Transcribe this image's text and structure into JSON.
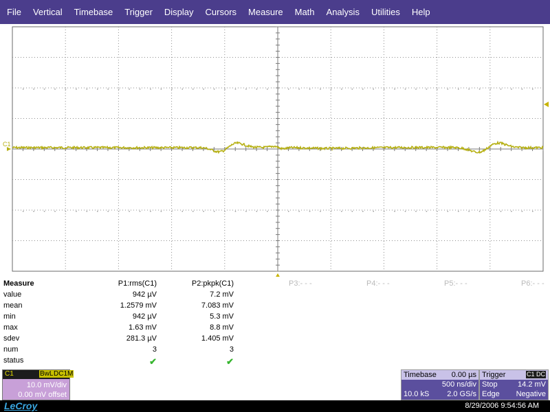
{
  "menu": [
    "File",
    "Vertical",
    "Timebase",
    "Trigger",
    "Display",
    "Cursors",
    "Measure",
    "Math",
    "Analysis",
    "Utilities",
    "Help"
  ],
  "grid": {
    "channel_label": "C1",
    "trace_color": "#b6b013",
    "grid_color": "#8c8c8c",
    "trigger_marker_color": "#c8b400"
  },
  "measure": {
    "title": "Measure",
    "p1_header": "P1:rms(C1)",
    "p2_header": "P2:pkpk(C1)",
    "p3": "P3:- - -",
    "p4": "P4:- - -",
    "p5": "P5:- - -",
    "p6": "P6:- - -",
    "rows": [
      {
        "label": "value",
        "p1": "942 µV",
        "p2": "7.2 mV"
      },
      {
        "label": "mean",
        "p1": "1.2579 mV",
        "p2": "7.083 mV"
      },
      {
        "label": "min",
        "p1": "942 µV",
        "p2": "5.3 mV"
      },
      {
        "label": "max",
        "p1": "1.63 mV",
        "p2": "8.8 mV"
      },
      {
        "label": "sdev",
        "p1": "281.3 µV",
        "p2": "1.405 mV"
      },
      {
        "label": "num",
        "p1": "3",
        "p2": "3"
      }
    ],
    "status_label": "status",
    "status_p1": "✔",
    "status_p2": "✔"
  },
  "channel": {
    "name": "C1",
    "bwl": "BwL",
    "coupling": "DC1M",
    "vdiv": "10.0 mV/div",
    "offset": "0.00 mV offset"
  },
  "timebase": {
    "title": "Timebase",
    "delay": "0.00 µs",
    "tdiv": "500 ns/div",
    "samples": "10.0 kS",
    "rate": "2.0 GS/s"
  },
  "trigger": {
    "title": "Trigger",
    "badge": "C1 DC",
    "mode": "Stop",
    "level": "14.2 mV",
    "type": "Edge",
    "slope": "Negative"
  },
  "footer": {
    "logo": "LeCroy",
    "datetime": "8/29/2006 9:54:56 AM"
  }
}
